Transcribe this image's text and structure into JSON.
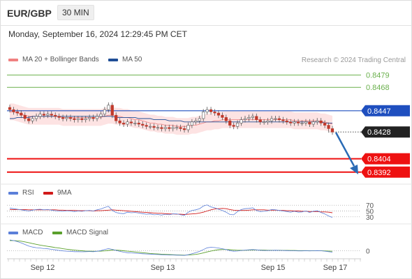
{
  "header": {
    "symbol": "EUR/GBP",
    "timeframe": "30 MIN"
  },
  "datetime": "Monday, September 16, 2024 12:29:45 PM CET",
  "legend": {
    "bollinger": "MA 20 + Bollinger Bands",
    "ma50": "MA 50",
    "copyright": "Research © 2024 Trading Central",
    "rsi": "RSI",
    "rsi_ma": "9MA",
    "macd": "MACD",
    "macd_signal": "MACD Signal"
  },
  "colors": {
    "bollinger": "#f08080",
    "band_fill": "#fde3e3",
    "ma50": "#1f4e96",
    "green_level": "#6ab04c",
    "blue_level": "#1f4fbf",
    "black_level": "#222222",
    "red_level": "#ee1111",
    "arrow": "#2a6bb5",
    "up_candle": "#ffffff",
    "down_candle": "#c0392b",
    "rsi": "#5b7fd9",
    "rsi_ma": "#d11a1a",
    "macd": "#5b7fd9",
    "macd_signal": "#5aa02c"
  },
  "chart_data": [
    {
      "type": "candlestick",
      "title": "EUR/GBP 30 MIN",
      "x_ticks": [
        "Sep 12",
        "Sep 13",
        "Sep 15",
        "Sep 17"
      ],
      "ylim": [
        0.8385,
        0.8485
      ],
      "levels": [
        {
          "value": "0.8479",
          "kind": "resistance"
        },
        {
          "value": "0.8468",
          "kind": "resistance"
        },
        {
          "value": "0.8447",
          "kind": "pivot"
        },
        {
          "value": "0.8428",
          "kind": "last"
        },
        {
          "value": "0.8404",
          "kind": "support"
        },
        {
          "value": "0.8392",
          "kind": "support"
        }
      ],
      "close": [
        0.8448,
        0.8446,
        0.8445,
        0.8443,
        0.844,
        0.8438,
        0.844,
        0.8442,
        0.8444,
        0.8443,
        0.8444,
        0.8443,
        0.8442,
        0.8441,
        0.844,
        0.8441,
        0.844,
        0.8439,
        0.844,
        0.8439,
        0.844,
        0.8441,
        0.844,
        0.8442,
        0.8444,
        0.8448,
        0.8452,
        0.8443,
        0.8438,
        0.8436,
        0.8435,
        0.8437,
        0.8436,
        0.8436,
        0.8435,
        0.8434,
        0.8433,
        0.8433,
        0.8432,
        0.8432,
        0.8431,
        0.8432,
        0.8431,
        0.8432,
        0.8432,
        0.8431,
        0.843,
        0.8434,
        0.8437,
        0.8438,
        0.844,
        0.8446,
        0.8448,
        0.8446,
        0.8445,
        0.8443,
        0.8441,
        0.8438,
        0.8434,
        0.8433,
        0.8436,
        0.8439,
        0.844,
        0.8441,
        0.8442,
        0.8439,
        0.8437,
        0.8437,
        0.8438,
        0.844,
        0.844,
        0.8439,
        0.8438,
        0.8437,
        0.8436,
        0.8437,
        0.8436,
        0.8436,
        0.8437,
        0.8435,
        0.8437,
        0.8438,
        0.8436,
        0.8434,
        0.8431,
        0.8428
      ],
      "ma20": [
        0.8446,
        0.8446,
        0.8445,
        0.8444,
        0.8443,
        0.8442,
        0.8442,
        0.8442,
        0.8442,
        0.8442,
        0.8442,
        0.8442,
        0.8442,
        0.8442,
        0.8441,
        0.8441,
        0.8441,
        0.8441,
        0.8441,
        0.8441,
        0.8441,
        0.8441,
        0.8441,
        0.8441,
        0.8441,
        0.8442,
        0.8443,
        0.8443,
        0.8442,
        0.8442,
        0.8441,
        0.8441,
        0.844,
        0.8439,
        0.8439,
        0.8438,
        0.8437,
        0.8436,
        0.8436,
        0.8435,
        0.8435,
        0.8434,
        0.8434,
        0.8434,
        0.8433,
        0.8433,
        0.8433,
        0.8433,
        0.8434,
        0.8434,
        0.8435,
        0.8436,
        0.8437,
        0.8437,
        0.8438,
        0.8438,
        0.8439,
        0.8439,
        0.8439,
        0.8439,
        0.8439,
        0.8439,
        0.8439,
        0.8439,
        0.8439,
        0.8439,
        0.8439,
        0.8439,
        0.8439,
        0.8439,
        0.8439,
        0.8439,
        0.8439,
        0.8439,
        0.8439,
        0.8438,
        0.8438,
        0.8438,
        0.8438,
        0.8438,
        0.8438,
        0.8438,
        0.8437,
        0.8437,
        0.8436,
        0.8435
      ],
      "ma50": [
        0.844,
        0.844,
        0.8441,
        0.8441,
        0.8441,
        0.8441,
        0.8442,
        0.8442,
        0.8442,
        0.8442,
        0.8442,
        0.8442,
        0.8442,
        0.8442,
        0.8442,
        0.8442,
        0.8442,
        0.8442,
        0.8442,
        0.8442,
        0.8442,
        0.8442,
        0.8442,
        0.8442,
        0.8442,
        0.8442,
        0.8442,
        0.8442,
        0.8441,
        0.8441,
        0.8441,
        0.8441,
        0.8441,
        0.8441,
        0.844,
        0.844,
        0.844,
        0.844,
        0.8439,
        0.8439,
        0.8439,
        0.8439,
        0.8438,
        0.8438,
        0.8438,
        0.8438,
        0.8437,
        0.8437,
        0.8437,
        0.8437,
        0.8437,
        0.8437,
        0.8437,
        0.8437,
        0.8437,
        0.8437,
        0.8437,
        0.8437,
        0.8437,
        0.8437,
        0.8437,
        0.8437,
        0.8437,
        0.8437,
        0.8437,
        0.8437,
        0.8437,
        0.8437,
        0.8437,
        0.8437,
        0.8437,
        0.8437,
        0.8437,
        0.8437,
        0.8437,
        0.8437,
        0.8437,
        0.8437,
        0.8437,
        0.8437,
        0.8437,
        0.8437,
        0.8437,
        0.8436,
        0.8436,
        0.8436
      ]
    },
    {
      "type": "line",
      "title": "RSI",
      "ylim": [
        20,
        80
      ],
      "y_ticks": [
        "70",
        "50",
        "30"
      ],
      "series": [
        {
          "name": "RSI",
          "values": [
            60,
            58,
            56,
            54,
            52,
            50,
            53,
            55,
            56,
            54,
            55,
            53,
            51,
            50,
            49,
            51,
            50,
            48,
            50,
            49,
            51,
            52,
            50,
            54,
            57,
            62,
            66,
            52,
            45,
            42,
            41,
            46,
            44,
            45,
            43,
            41,
            39,
            40,
            37,
            38,
            36,
            39,
            37,
            40,
            40,
            37,
            35,
            46,
            52,
            54,
            58,
            67,
            71,
            64,
            61,
            56,
            52,
            46,
            38,
            37,
            48,
            55,
            58,
            59,
            61,
            52,
            48,
            49,
            51,
            55,
            54,
            52,
            50,
            48,
            46,
            49,
            46,
            47,
            50,
            45,
            49,
            51,
            45,
            40,
            33,
            28
          ]
        },
        {
          "name": "9MA",
          "values": [
            55,
            55,
            55,
            55,
            55,
            54,
            54,
            54,
            54,
            54,
            54,
            54,
            54,
            53,
            53,
            52,
            52,
            52,
            51,
            51,
            51,
            51,
            50,
            51,
            51,
            52,
            53,
            54,
            53,
            52,
            51,
            50,
            49,
            48,
            47,
            46,
            45,
            44,
            43,
            42,
            42,
            41,
            40,
            40,
            39,
            39,
            38,
            39,
            40,
            41,
            43,
            46,
            50,
            54,
            57,
            58,
            59,
            58,
            55,
            53,
            52,
            52,
            52,
            53,
            54,
            54,
            54,
            54,
            53,
            53,
            53,
            52,
            52,
            51,
            51,
            50,
            50,
            49,
            49,
            48,
            48,
            48,
            47,
            47,
            46,
            44
          ]
        }
      ]
    },
    {
      "type": "line",
      "title": "MACD",
      "y_ticks": [
        "0"
      ],
      "series": [
        {
          "name": "MACD",
          "values": [
            0.00085,
            0.0008,
            0.00072,
            0.00062,
            0.0005,
            0.00038,
            0.0003,
            0.00025,
            0.00022,
            0.00018,
            0.00016,
            0.00012,
            8e-05,
            4e-05,
            0.0,
            -2e-05,
            -4e-05,
            -6e-05,
            -6e-05,
            -7e-05,
            -6e-05,
            -5e-05,
            -6e-05,
            -3e-05,
            2e-05,
            0.0001,
            0.00018,
            0.00012,
            4e-05,
            -4e-05,
            -0.0001,
            -0.00014,
            -0.00016,
            -0.00018,
            -0.0002,
            -0.00022,
            -0.00024,
            -0.00025,
            -0.00027,
            -0.00028,
            -0.0003,
            -0.00031,
            -0.00032,
            -0.00032,
            -0.00033,
            -0.00034,
            -0.00035,
            -0.0003,
            -0.00022,
            -0.00014,
            -4e-05,
            0.0001,
            0.00024,
            0.00028,
            0.00026,
            0.00022,
            0.00017,
            0.0001,
            2e-05,
            -3e-05,
            -1e-05,
            3e-05,
            6e-05,
            8e-05,
            0.0001,
            8e-05,
            5e-05,
            3e-05,
            3e-05,
            4e-05,
            5e-05,
            4e-05,
            3e-05,
            2e-05,
            1e-05,
            1e-05,
            0.0,
            0.0,
            1e-05,
            0.0,
            1e-05,
            2e-05,
            1e-05,
            -2e-05,
            -6e-05,
            -0.0001
          ]
        },
        {
          "name": "MACD Signal",
          "values": [
            0.0008,
            0.0008,
            0.00078,
            0.00075,
            0.0007,
            0.00064,
            0.00057,
            0.00051,
            0.00045,
            0.0004,
            0.00035,
            0.00031,
            0.00026,
            0.00022,
            0.00017,
            0.00013,
            9e-05,
            6e-05,
            3e-05,
            1e-05,
            -1e-05,
            -2e-05,
            -3e-05,
            -3e-05,
            -2e-05,
            0.0,
            4e-05,
            6e-05,
            6e-05,
            4e-05,
            1e-05,
            -2e-05,
            -5e-05,
            -8e-05,
            -0.00011,
            -0.00014,
            -0.00017,
            -0.0002,
            -0.00022,
            -0.00024,
            -0.00026,
            -0.00027,
            -0.00029,
            -0.0003,
            -0.00031,
            -0.00032,
            -0.00033,
            -0.00032,
            -0.0003,
            -0.00027,
            -0.00022,
            -0.00016,
            -8e-05,
            -1e-05,
            5e-05,
            9e-05,
            0.00011,
            0.00011,
            9e-05,
            7e-05,
            5e-05,
            5e-05,
            5e-05,
            6e-05,
            7e-05,
            7e-05,
            7e-05,
            6e-05,
            5e-05,
            5e-05,
            5e-05,
            5e-05,
            4e-05,
            4e-05,
            3e-05,
            3e-05,
            2e-05,
            2e-05,
            2e-05,
            1e-05,
            1e-05,
            1e-05,
            1e-05,
            0.0,
            -1e-05,
            -3e-05
          ]
        }
      ]
    }
  ]
}
